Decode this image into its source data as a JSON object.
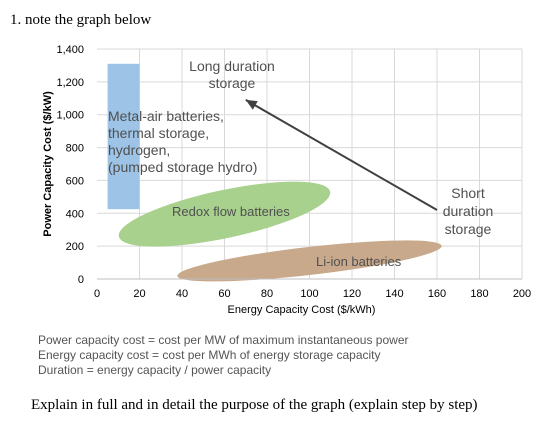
{
  "question": {
    "text": "1.  note the graph below"
  },
  "definitions": [
    "Power capacity cost = cost per MW of maximum instantaneous power",
    "Energy capacity cost = cost per MWh of energy storage capacity",
    "Duration = energy capacity / power capacity"
  ],
  "prompt": {
    "text": "Explain in full and in detail the purpose of the graph (explain step by step)"
  },
  "chart_data": {
    "type": "scatter",
    "xlabel": "Energy Capacity Cost ($/kWh)",
    "ylabel": "Power Capacity Cost ($/kW)",
    "xlim": [
      0,
      200
    ],
    "ylim": [
      0,
      1400
    ],
    "xticks": [
      0,
      20,
      40,
      60,
      80,
      100,
      120,
      140,
      160,
      180,
      200
    ],
    "yticks": [
      "0",
      "200",
      "400",
      "600",
      "800",
      "1,000",
      "1,200",
      "1,400"
    ],
    "ytick_values": [
      0,
      200,
      400,
      600,
      800,
      1000,
      1200,
      1400
    ],
    "grid": true,
    "regions": [
      {
        "name": "Metal-air batteries, thermal storage, hydrogen, (pumped storage hydro)",
        "shape": "rectangle",
        "x": [
          5,
          20
        ],
        "y": [
          425,
          1310
        ],
        "color": "#9dc3e6"
      },
      {
        "name": "Redox flow batteries",
        "shape": "ellipse",
        "center": [
          60,
          395
        ],
        "x_range": [
          10,
          110
        ],
        "y_range": [
          200,
          590
        ],
        "color": "#a9d18e"
      },
      {
        "name": "Li-ion batteries",
        "shape": "ellipse",
        "center": [
          100,
          110
        ],
        "x_range": [
          64,
          187
        ],
        "y_range": [
          0,
          215
        ],
        "color": "#c9a98c"
      }
    ],
    "labels": [
      {
        "lines": [
          "Metal-air batteries,",
          "thermal storage,",
          "hydrogen,",
          "(pumped storage hydro)"
        ]
      },
      {
        "lines": [
          "Redox flow batteries"
        ]
      },
      {
        "lines": [
          "Li-ion batteries"
        ]
      },
      {
        "lines": [
          "Long duration",
          "storage"
        ]
      },
      {
        "lines": [
          "Short",
          "duration",
          "storage"
        ]
      }
    ],
    "arrow": {
      "from": [
        160,
        420
      ],
      "to": [
        70,
        1090
      ],
      "direction": "toward long duration storage"
    }
  }
}
